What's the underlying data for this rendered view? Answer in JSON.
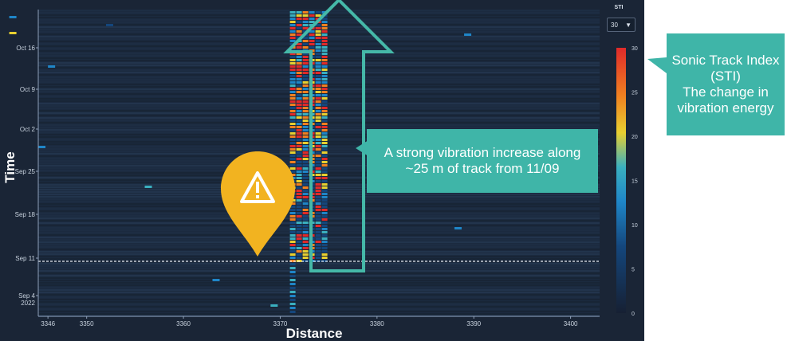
{
  "chart_data": {
    "type": "heatmap",
    "xlabel": "Distance",
    "ylabel": "Time",
    "x_ticks": [
      3346,
      3350,
      3360,
      3370,
      3380,
      3390,
      3400
    ],
    "xlim": [
      3345,
      3403
    ],
    "y_ticks": [
      "Sep 4\n2022",
      "Sep 11",
      "Sep 18",
      "Sep 25",
      "Oct 2",
      "Oct 9",
      "Oct 16"
    ],
    "colorbar": {
      "title": "STI",
      "range": [
        0,
        30
      ],
      "ticks": [
        0,
        5,
        10,
        15,
        20,
        25,
        30
      ]
    },
    "grid": false,
    "marker_line": {
      "label": "11/09",
      "style": "dashed white"
    },
    "hotspot": {
      "distance_range": [
        3371,
        3375
      ],
      "from_date": "Sep 11",
      "sti_peak": 30
    }
  },
  "controls": {
    "sti_select_value": "30",
    "sti_select_arrow": "▼"
  },
  "annotations": {
    "sti_callout": [
      "Sonic Track Index",
      "(STI)",
      "The change in",
      "vibration energy"
    ],
    "vibration_callout": [
      "A strong vibration increase along",
      "~25 m of track from 11/09"
    ]
  },
  "icons": {
    "warning": "warning-triangle-icon",
    "arrow": "up-arrow-icon"
  },
  "colors": {
    "plot_bg": "#1b2a3f",
    "callout": "#3fb5a8",
    "arrow_outline": "#45b8a8",
    "warning_pin": "#f2b320",
    "colormap": [
      "#162033",
      "#14467c",
      "#1f86c8",
      "#3ab0c0",
      "#e8d030",
      "#f08020",
      "#e02a2a"
    ]
  }
}
